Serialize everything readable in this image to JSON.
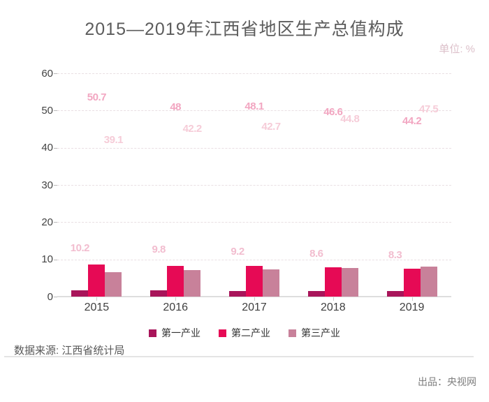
{
  "title": "2015—2019年江西省地区生产总值构成",
  "unit_label": "单位: %",
  "source_note": "数据来源: 江西省统计局",
  "producer": "出品：央视网",
  "colors": {
    "title_text": "#5c5c5c",
    "unit_text": "#dcc0ca",
    "axis_text": "#434343",
    "grid_dash": "#e9dfe3",
    "axis_line": "#dedede",
    "legend_text": "#333333",
    "divider": "#e4e4e4"
  },
  "chart_data": {
    "type": "bar",
    "title": "2015—2019年江西省地区生产总值构成",
    "unit": "%",
    "categories": [
      "2015",
      "2016",
      "2017",
      "2018",
      "2019"
    ],
    "series": [
      {
        "name": "第一产业",
        "color": "#a8155a",
        "label_color": "#f2bdcf",
        "values": [
          10.2,
          9.8,
          9.2,
          8.6,
          8.3
        ]
      },
      {
        "name": "第二产业",
        "color": "#e60a55",
        "label_color": "#f2a6c1",
        "values": [
          50.7,
          48,
          48.1,
          46.6,
          44.2
        ]
      },
      {
        "name": "第三产业",
        "color": "#c8819a",
        "label_color": "#f6ccd8",
        "values": [
          39.1,
          42.2,
          42.7,
          44.8,
          47.5
        ]
      }
    ],
    "xlabel": "",
    "ylabel": "",
    "ylim": [
      0,
      60
    ],
    "ytick_step": 10,
    "grid": "dashed-horizontal",
    "legend_position": "bottom",
    "value_labels_shown": true,
    "bar_render_progress": 0.17
  }
}
